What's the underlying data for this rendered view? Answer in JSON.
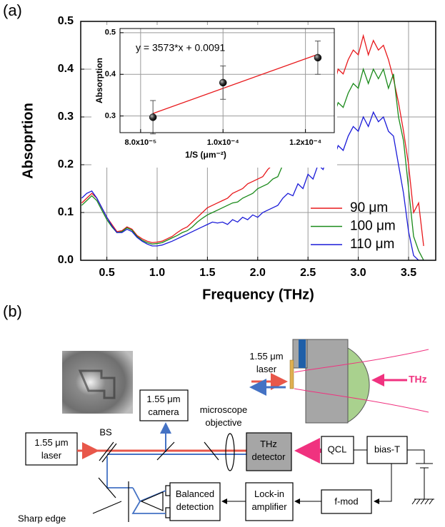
{
  "panels": [
    "(a)",
    "(b)"
  ],
  "chart_data": [
    {
      "type": "line",
      "xlabel": "Frequency (THz)",
      "ylabel": "Absoprtion",
      "xlim": [
        0.24,
        3.77
      ],
      "ylim": [
        0,
        0.5
      ],
      "xticks": [
        0.5,
        {
          "value": 1,
          "label": "1.0"
        },
        1.5,
        {
          "value": 2,
          "label": "2.0"
        },
        2.5,
        {
          "value": 3,
          "label": "3.0"
        },
        3.5
      ],
      "yticks": [
        {
          "value": 0,
          "label": "0.0"
        },
        0.1,
        0.2,
        0.3,
        0.4,
        0.5
      ],
      "grid": true,
      "legend": "lower right",
      "x": [
        0.25,
        0.3,
        0.35,
        0.4,
        0.45,
        0.5,
        0.55,
        0.6,
        0.65,
        0.7,
        0.75,
        0.8,
        0.85,
        0.9,
        0.95,
        1.0,
        1.05,
        1.1,
        1.15,
        1.2,
        1.25,
        1.3,
        1.35,
        1.4,
        1.45,
        1.5,
        1.55,
        1.6,
        1.65,
        1.7,
        1.75,
        1.8,
        1.85,
        1.9,
        1.95,
        2.0,
        2.05,
        2.1,
        2.15,
        2.2,
        2.25,
        2.3,
        2.35,
        2.4,
        2.45,
        2.5,
        2.55,
        2.6,
        2.65,
        2.7,
        2.75,
        2.8,
        2.85,
        2.9,
        2.95,
        3.0,
        3.05,
        3.1,
        3.15,
        3.2,
        3.25,
        3.3,
        3.35,
        3.4,
        3.45,
        3.5,
        3.55,
        3.6,
        3.65
      ],
      "series": [
        {
          "name": "90 μm",
          "color": "#e8191c",
          "values": [
            0.12,
            0.13,
            0.14,
            0.13,
            0.11,
            0.09,
            0.075,
            0.06,
            0.062,
            0.07,
            0.065,
            0.052,
            0.045,
            0.04,
            0.037,
            0.038,
            0.04,
            0.045,
            0.05,
            0.058,
            0.065,
            0.07,
            0.08,
            0.09,
            0.1,
            0.11,
            0.115,
            0.12,
            0.125,
            0.13,
            0.14,
            0.145,
            0.15,
            0.16,
            0.165,
            0.17,
            0.175,
            0.19,
            0.2,
            0.21,
            0.25,
            0.27,
            0.26,
            0.3,
            0.29,
            0.33,
            0.31,
            0.35,
            0.33,
            0.37,
            0.36,
            0.4,
            0.39,
            0.42,
            0.44,
            0.43,
            0.47,
            0.43,
            0.46,
            0.44,
            0.45,
            0.42,
            0.38,
            0.33,
            0.27,
            0.2,
            0.1,
            0.12,
            0.03
          ]
        },
        {
          "name": "100 μm",
          "color": "#1a8a1a",
          "values": [
            0.115,
            0.125,
            0.135,
            0.125,
            0.105,
            0.085,
            0.07,
            0.058,
            0.06,
            0.068,
            0.063,
            0.05,
            0.042,
            0.037,
            0.034,
            0.035,
            0.037,
            0.042,
            0.047,
            0.052,
            0.058,
            0.062,
            0.07,
            0.08,
            0.088,
            0.095,
            0.1,
            0.105,
            0.11,
            0.115,
            0.12,
            0.122,
            0.13,
            0.135,
            0.14,
            0.15,
            0.155,
            0.16,
            0.17,
            0.175,
            0.2,
            0.22,
            0.21,
            0.24,
            0.23,
            0.27,
            0.25,
            0.29,
            0.27,
            0.31,
            0.3,
            0.33,
            0.32,
            0.35,
            0.37,
            0.36,
            0.4,
            0.37,
            0.4,
            0.38,
            0.4,
            0.36,
            0.39,
            0.3,
            0.25,
            0.15,
            0.05,
            0.02,
            0
          ]
        },
        {
          "name": "110 μm",
          "color": "#1a1ad8",
          "values": [
            0.13,
            0.14,
            0.145,
            0.13,
            0.11,
            0.09,
            0.072,
            0.058,
            0.058,
            0.065,
            0.06,
            0.048,
            0.04,
            0.034,
            0.03,
            0.03,
            0.032,
            0.036,
            0.04,
            0.045,
            0.05,
            0.055,
            0.06,
            0.065,
            0.07,
            0.075,
            0.08,
            0.078,
            0.08,
            0.075,
            0.085,
            0.08,
            0.09,
            0.085,
            0.095,
            0.09,
            0.1,
            0.105,
            0.11,
            0.115,
            0.13,
            0.14,
            0.135,
            0.16,
            0.15,
            0.18,
            0.17,
            0.2,
            0.19,
            0.22,
            0.21,
            0.24,
            0.23,
            0.26,
            0.28,
            0.27,
            0.3,
            0.28,
            0.31,
            0.29,
            0.3,
            0.27,
            0.26,
            0.2,
            0.14,
            0.06,
            0.01,
            0,
            0
          ]
        }
      ]
    },
    {
      "type": "scatter",
      "annotation": "y = 3573*x + 0.0091",
      "xlabel": "1/S (μm⁻²)",
      "ylabel": "Absorption",
      "xlim": [
        7.5e-05,
        0.000127
      ],
      "ylim": [
        0.26,
        0.51
      ],
      "xticks": [
        {
          "value": 8e-05,
          "label": "8.0x10⁻⁵"
        },
        {
          "value": 0.0001,
          "label": "1.0x10⁻⁴"
        },
        {
          "value": 0.00012,
          "label": "1.2x10⁻⁴"
        }
      ],
      "yticks": [
        0.3,
        0.4,
        0.5
      ],
      "grid": true,
      "x": [
        8.3e-05,
        0.0001,
        0.000123
      ],
      "values": [
        0.297,
        0.38,
        0.44
      ],
      "errors": [
        0.04,
        0.04,
        0.04
      ],
      "color": "#000000",
      "fit": {
        "color": "#e8191c",
        "x": [
          8.3e-05,
          0.000123
        ],
        "values": [
          0.306,
          0.448
        ]
      }
    }
  ],
  "diagram": {
    "laser": [
      "1.55 μm",
      "laser"
    ],
    "bs": "BS",
    "camera": [
      "1.55 μm",
      "camera"
    ],
    "objective": [
      "microscope",
      "objective"
    ],
    "detector": [
      "THz",
      "detector"
    ],
    "qcl": "QCL",
    "bias_t": "bias-T",
    "balanced": [
      "Balanced",
      "detection"
    ],
    "lockin": [
      "Lock-in",
      "amplifier"
    ],
    "fmod": "f-mod",
    "sharp_edge": "Sharp edge",
    "inset_laser": [
      "1.55 μm",
      "laser"
    ],
    "thz": "THz"
  }
}
